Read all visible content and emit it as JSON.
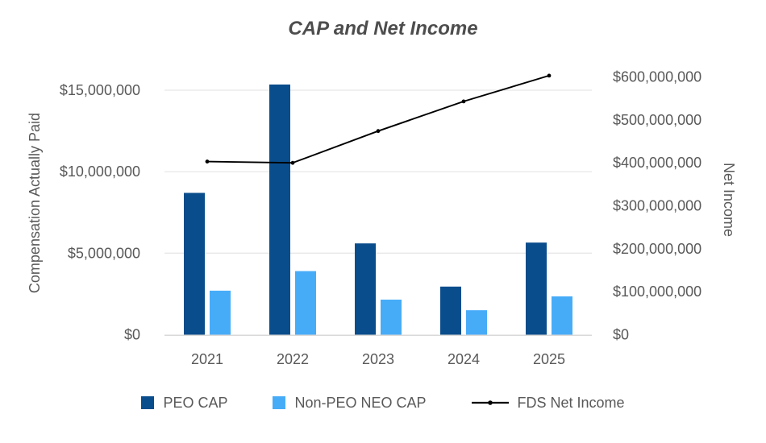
{
  "chart_data": {
    "type": "combo-bar-line",
    "title": "CAP and Net Income",
    "categories": [
      "2021",
      "2022",
      "2023",
      "2024",
      "2025"
    ],
    "series": [
      {
        "name": "PEO CAP",
        "type": "bar",
        "axis": "left",
        "color": "#0A4D8C",
        "values": [
          8700000,
          15350000,
          5600000,
          2950000,
          5650000
        ]
      },
      {
        "name": "Non-PEO NEO CAP",
        "type": "bar",
        "axis": "left",
        "color": "#47ACF8",
        "values": [
          2700000,
          3900000,
          2150000,
          1500000,
          2350000
        ]
      },
      {
        "name": "FDS Net Income",
        "type": "line",
        "axis": "right",
        "color": "#000000",
        "values": [
          403000000,
          400000000,
          474000000,
          543000000,
          603000000
        ]
      }
    ],
    "left_axis": {
      "label": "Compensation Actually Paid",
      "range": [
        0,
        15000000
      ],
      "tick_values": [
        0,
        5000000,
        10000000,
        15000000
      ],
      "tick_labels": [
        "$0",
        "$5,000,000",
        "$10,000,000",
        "$15,000,000"
      ]
    },
    "right_axis": {
      "label": "Net Income",
      "range": [
        0,
        600000000
      ],
      "tick_values": [
        0,
        100000000,
        200000000,
        300000000,
        400000000,
        500000000,
        600000000
      ],
      "tick_labels": [
        "$0",
        "$100,000,000",
        "$200,000,000",
        "$300,000,000",
        "$400,000,000",
        "$500,000,000",
        "$600,000,000"
      ]
    },
    "legend_position": "bottom",
    "grid": "horizontal",
    "styles": {
      "title_color": "#4D4D4D",
      "text_color": "#595959",
      "gridline_color": "#E8E8E8",
      "axisline_color": "#D9D9D9",
      "background": "#FFFFFF"
    }
  }
}
